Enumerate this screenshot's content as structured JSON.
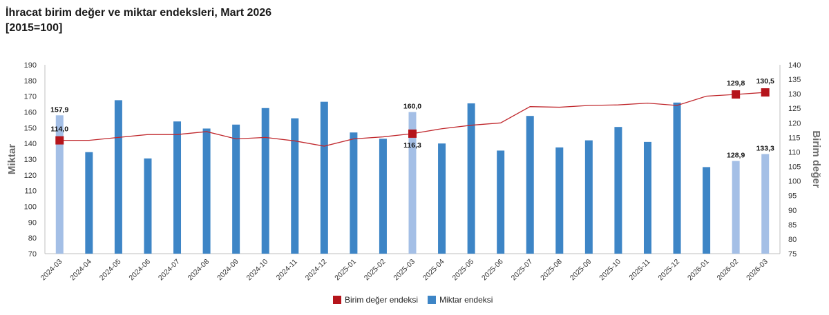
{
  "title": {
    "line1": "İhracat birim değer ve miktar endeksleri, Mart 2026",
    "line2": "[2015=100]"
  },
  "colors": {
    "bar": "#3d85c6",
    "bar_highlight": "#a4bfe6",
    "line": "#c0282d",
    "marker": "#b5141b"
  },
  "chart_data": {
    "type": "bar",
    "categories": [
      "2024-03",
      "2024-04",
      "2024-05",
      "2024-06",
      "2024-07",
      "2024-08",
      "2024-09",
      "2024-10",
      "2024-11",
      "2024-12",
      "2025-01",
      "2025-02",
      "2025-03",
      "2025-04",
      "2025-05",
      "2025-06",
      "2025-07",
      "2025-08",
      "2025-09",
      "2025-10",
      "2025-11",
      "2025-12",
      "2026-01",
      "2026-02",
      "2026-03"
    ],
    "series": [
      {
        "name": "Miktar endeksi",
        "type": "bar",
        "axis": "left",
        "values": [
          157.9,
          134.5,
          167.5,
          130.5,
          154.0,
          149.5,
          152.0,
          162.5,
          156.0,
          166.5,
          147.0,
          143.0,
          160.0,
          140.0,
          165.5,
          135.5,
          157.5,
          137.5,
          142.0,
          150.5,
          141.0,
          166.0,
          125.0,
          128.9,
          133.3
        ],
        "highlighted_indices": [
          0,
          12,
          23,
          24
        ],
        "labels": {
          "0": "157,9",
          "12": "160,0",
          "23": "128,9",
          "24": "133,3"
        }
      },
      {
        "name": "Birim değer endeksi",
        "type": "line",
        "axis": "right",
        "values": [
          114.0,
          114.0,
          115.0,
          116.0,
          116.0,
          117.0,
          114.5,
          115.0,
          113.8,
          112.0,
          114.5,
          115.2,
          116.3,
          118.0,
          119.2,
          120.0,
          125.6,
          125.4,
          126.0,
          126.2,
          126.8,
          126.0,
          129.2,
          129.8,
          130.5
        ],
        "markers": [
          0,
          12,
          23,
          24
        ],
        "labels": {
          "0": "114,0",
          "12": "116,3",
          "23": "129,8",
          "24": "130,5"
        }
      }
    ],
    "ylabel_left": "Miktar",
    "ylabel_right": "Birim değer",
    "ylim_left": [
      70,
      190
    ],
    "ylim_right": [
      75,
      140
    ],
    "yticks_left": [
      70,
      80,
      90,
      100,
      110,
      120,
      130,
      140,
      150,
      160,
      170,
      180,
      190
    ],
    "yticks_right": [
      75,
      80,
      85,
      90,
      95,
      100,
      105,
      110,
      115,
      120,
      125,
      130,
      135,
      140
    ],
    "grid": false,
    "legend": "bottom-center",
    "legend_entries": [
      "Birim değer endeksi",
      "Miktar endeksi"
    ]
  }
}
